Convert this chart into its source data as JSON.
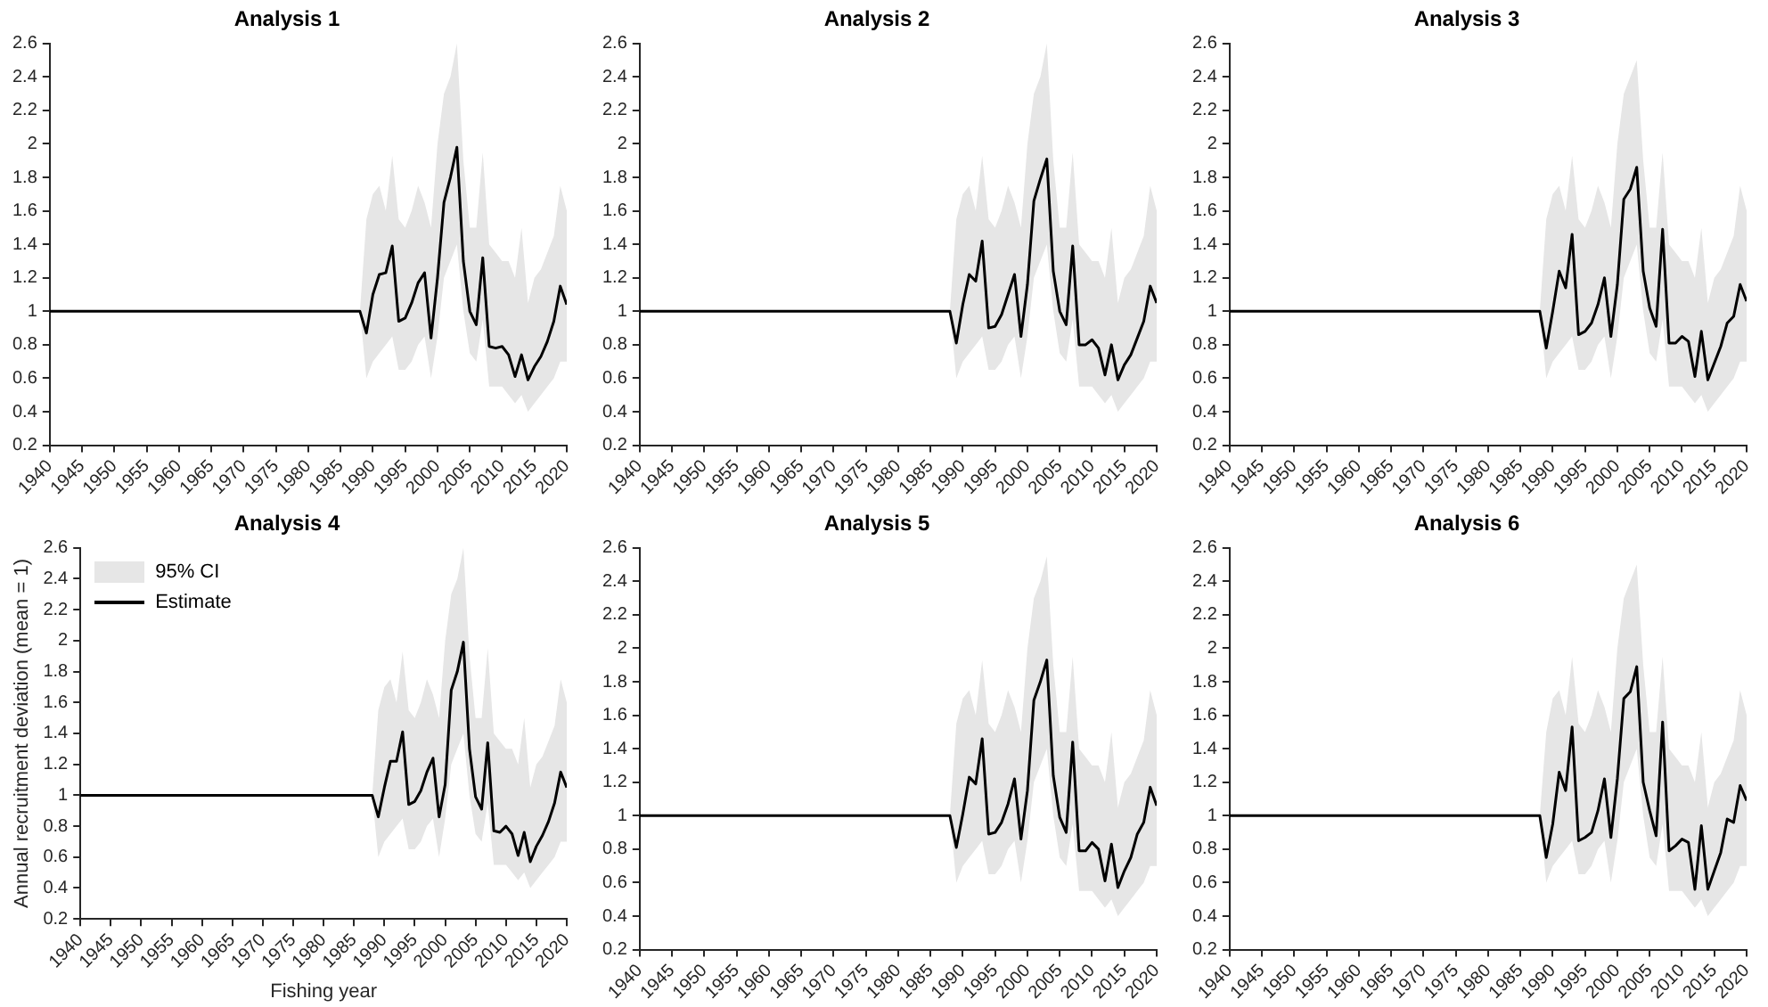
{
  "chart_data": [
    {
      "type": "line",
      "title": "Analysis 1",
      "x": [
        1940,
        1988,
        1989,
        1990,
        1991,
        1992,
        1993,
        1994,
        1995,
        1996,
        1997,
        1998,
        1999,
        2000,
        2001,
        2002,
        2003,
        2004,
        2005,
        2006,
        2007,
        2008,
        2009,
        2010,
        2011,
        2012,
        2013,
        2014,
        2015,
        2016,
        2017,
        2018,
        2019,
        2020
      ],
      "xlim": [
        1940,
        2020
      ],
      "xticks": [
        1940,
        1945,
        1950,
        1955,
        1960,
        1965,
        1970,
        1975,
        1980,
        1985,
        1990,
        1995,
        2000,
        2005,
        2010,
        2015,
        2020
      ],
      "ylim": [
        0.2,
        2.6
      ],
      "yticks": [
        0.2,
        0.4,
        0.6,
        0.8,
        1,
        1.2,
        1.4,
        1.6,
        1.8,
        2,
        2.2,
        2.4,
        2.6
      ],
      "grid": false,
      "legend": false,
      "series": [
        {
          "color": "#000000",
          "values": [
            1,
            1,
            0.87,
            1.1,
            1.22,
            1.23,
            1.39,
            0.94,
            0.96,
            1.05,
            1.17,
            1.23,
            0.84,
            1.2,
            1.65,
            1.8,
            1.98,
            1.3,
            1.0,
            0.92,
            1.32,
            0.79,
            0.78,
            0.79,
            0.74,
            0.61,
            0.74,
            0.59,
            0.67,
            0.73,
            0.82,
            0.94,
            1.15,
            1.04
          ],
          "upper": [
            1,
            1,
            1.55,
            1.7,
            1.75,
            1.6,
            1.93,
            1.55,
            1.5,
            1.6,
            1.75,
            1.65,
            1.5,
            2.0,
            2.3,
            2.4,
            2.6,
            1.9,
            1.5,
            1.5,
            1.95,
            1.4,
            1.35,
            1.3,
            1.3,
            1.2,
            1.5,
            1.05,
            1.2,
            1.25,
            1.35,
            1.45,
            1.75,
            1.6
          ],
          "lower": [
            1,
            1,
            0.6,
            0.7,
            0.75,
            0.8,
            0.85,
            0.65,
            0.65,
            0.7,
            0.8,
            0.85,
            0.6,
            0.85,
            1.2,
            1.3,
            1.4,
            1.0,
            0.75,
            0.7,
            0.95,
            0.55,
            0.55,
            0.55,
            0.5,
            0.45,
            0.5,
            0.4,
            0.45,
            0.5,
            0.55,
            0.6,
            0.7,
            0.7
          ]
        }
      ]
    },
    {
      "type": "line",
      "title": "Analysis 2",
      "x": [
        1940,
        1988,
        1989,
        1990,
        1991,
        1992,
        1993,
        1994,
        1995,
        1996,
        1997,
        1998,
        1999,
        2000,
        2001,
        2002,
        2003,
        2004,
        2005,
        2006,
        2007,
        2008,
        2009,
        2010,
        2011,
        2012,
        2013,
        2014,
        2015,
        2016,
        2017,
        2018,
        2019,
        2020
      ],
      "xlim": [
        1940,
        2020
      ],
      "xticks": [
        1940,
        1945,
        1950,
        1955,
        1960,
        1965,
        1970,
        1975,
        1980,
        1985,
        1990,
        1995,
        2000,
        2005,
        2010,
        2015,
        2020
      ],
      "ylim": [
        0.2,
        2.6
      ],
      "yticks": [
        0.2,
        0.4,
        0.6,
        0.8,
        1,
        1.2,
        1.4,
        1.6,
        1.8,
        2,
        2.2,
        2.4,
        2.6
      ],
      "grid": false,
      "legend": false,
      "series": [
        {
          "color": "#000000",
          "values": [
            1,
            1,
            0.81,
            1.04,
            1.22,
            1.18,
            1.42,
            0.9,
            0.91,
            0.98,
            1.1,
            1.22,
            0.85,
            1.16,
            1.66,
            1.79,
            1.91,
            1.24,
            1.0,
            0.92,
            1.39,
            0.8,
            0.8,
            0.83,
            0.78,
            0.62,
            0.8,
            0.59,
            0.68,
            0.74,
            0.84,
            0.94,
            1.15,
            1.05
          ],
          "upper": [
            1,
            1,
            1.55,
            1.7,
            1.75,
            1.6,
            1.93,
            1.55,
            1.5,
            1.6,
            1.75,
            1.65,
            1.5,
            2.0,
            2.3,
            2.4,
            2.6,
            1.9,
            1.5,
            1.5,
            1.95,
            1.4,
            1.35,
            1.3,
            1.3,
            1.2,
            1.5,
            1.05,
            1.2,
            1.25,
            1.35,
            1.45,
            1.75,
            1.6
          ],
          "lower": [
            1,
            1,
            0.6,
            0.7,
            0.75,
            0.8,
            0.85,
            0.65,
            0.65,
            0.7,
            0.8,
            0.85,
            0.6,
            0.85,
            1.2,
            1.3,
            1.4,
            1.0,
            0.75,
            0.7,
            0.95,
            0.55,
            0.55,
            0.55,
            0.5,
            0.45,
            0.5,
            0.4,
            0.45,
            0.5,
            0.55,
            0.6,
            0.7,
            0.7
          ]
        }
      ]
    },
    {
      "type": "line",
      "title": "Analysis 3",
      "x": [
        1940,
        1988,
        1989,
        1990,
        1991,
        1992,
        1993,
        1994,
        1995,
        1996,
        1997,
        1998,
        1999,
        2000,
        2001,
        2002,
        2003,
        2004,
        2005,
        2006,
        2007,
        2008,
        2009,
        2010,
        2011,
        2012,
        2013,
        2014,
        2015,
        2016,
        2017,
        2018,
        2019,
        2020
      ],
      "xlim": [
        1940,
        2020
      ],
      "xticks": [
        1940,
        1945,
        1950,
        1955,
        1960,
        1965,
        1970,
        1975,
        1980,
        1985,
        1990,
        1995,
        2000,
        2005,
        2010,
        2015,
        2020
      ],
      "ylim": [
        0.2,
        2.6
      ],
      "yticks": [
        0.2,
        0.4,
        0.6,
        0.8,
        1,
        1.2,
        1.4,
        1.6,
        1.8,
        2,
        2.2,
        2.4,
        2.6
      ],
      "grid": false,
      "legend": false,
      "series": [
        {
          "color": "#000000",
          "values": [
            1,
            1,
            0.78,
            1.0,
            1.24,
            1.14,
            1.46,
            0.86,
            0.88,
            0.93,
            1.04,
            1.2,
            0.85,
            1.16,
            1.67,
            1.73,
            1.86,
            1.24,
            1.02,
            0.91,
            1.49,
            0.81,
            0.81,
            0.85,
            0.82,
            0.61,
            0.88,
            0.59,
            0.69,
            0.79,
            0.93,
            0.97,
            1.16,
            1.06
          ],
          "upper": [
            1,
            1,
            1.55,
            1.7,
            1.75,
            1.6,
            1.93,
            1.55,
            1.5,
            1.6,
            1.75,
            1.65,
            1.5,
            2.0,
            2.3,
            2.4,
            2.5,
            1.9,
            1.5,
            1.5,
            1.95,
            1.4,
            1.35,
            1.3,
            1.3,
            1.2,
            1.5,
            1.05,
            1.2,
            1.25,
            1.35,
            1.45,
            1.75,
            1.6
          ],
          "lower": [
            1,
            1,
            0.6,
            0.7,
            0.75,
            0.8,
            0.85,
            0.65,
            0.65,
            0.7,
            0.8,
            0.85,
            0.6,
            0.85,
            1.2,
            1.3,
            1.4,
            1.0,
            0.75,
            0.7,
            0.95,
            0.55,
            0.55,
            0.55,
            0.5,
            0.45,
            0.5,
            0.4,
            0.45,
            0.5,
            0.55,
            0.6,
            0.7,
            0.7
          ]
        }
      ]
    },
    {
      "type": "line",
      "title": "Analysis 4",
      "xlabel": "Fishing year",
      "ylabel": "Annual recruitment deviation (mean = 1)",
      "annotations": [
        "95% CI"
      ],
      "x": [
        1940,
        1988,
        1989,
        1990,
        1991,
        1992,
        1993,
        1994,
        1995,
        1996,
        1997,
        1998,
        1999,
        2000,
        2001,
        2002,
        2003,
        2004,
        2005,
        2006,
        2007,
        2008,
        2009,
        2010,
        2011,
        2012,
        2013,
        2014,
        2015,
        2016,
        2017,
        2018,
        2019,
        2020
      ],
      "xlim": [
        1940,
        2020
      ],
      "xticks": [
        1940,
        1945,
        1950,
        1955,
        1960,
        1965,
        1970,
        1975,
        1980,
        1985,
        1990,
        1995,
        2000,
        2005,
        2010,
        2015,
        2020
      ],
      "ylim": [
        0.2,
        2.6
      ],
      "yticks": [
        0.2,
        0.4,
        0.6,
        0.8,
        1,
        1.2,
        1.4,
        1.6,
        1.8,
        2,
        2.2,
        2.4,
        2.6
      ],
      "grid": false,
      "legend": "top left",
      "series": [
        {
          "name": "Estimate",
          "color": "#000000",
          "values": [
            1,
            1,
            0.86,
            1.05,
            1.22,
            1.22,
            1.41,
            0.94,
            0.96,
            1.03,
            1.15,
            1.24,
            0.86,
            1.07,
            1.68,
            1.8,
            1.99,
            1.3,
            0.99,
            0.91,
            1.34,
            0.77,
            0.76,
            0.8,
            0.75,
            0.61,
            0.76,
            0.57,
            0.67,
            0.74,
            0.83,
            0.95,
            1.15,
            1.05
          ],
          "upper": [
            1,
            1,
            1.55,
            1.7,
            1.75,
            1.6,
            1.93,
            1.55,
            1.5,
            1.6,
            1.75,
            1.65,
            1.5,
            2.0,
            2.3,
            2.4,
            2.6,
            1.9,
            1.5,
            1.5,
            1.95,
            1.4,
            1.35,
            1.3,
            1.3,
            1.2,
            1.5,
            1.05,
            1.2,
            1.25,
            1.35,
            1.45,
            1.75,
            1.6
          ],
          "lower": [
            1,
            1,
            0.6,
            0.7,
            0.75,
            0.8,
            0.85,
            0.65,
            0.65,
            0.7,
            0.8,
            0.85,
            0.6,
            0.85,
            1.2,
            1.3,
            1.4,
            1.0,
            0.75,
            0.7,
            0.95,
            0.55,
            0.55,
            0.55,
            0.5,
            0.45,
            0.5,
            0.4,
            0.45,
            0.5,
            0.55,
            0.6,
            0.7,
            0.7
          ]
        }
      ]
    },
    {
      "type": "line",
      "title": "Analysis 5",
      "x": [
        1940,
        1988,
        1989,
        1990,
        1991,
        1992,
        1993,
        1994,
        1995,
        1996,
        1997,
        1998,
        1999,
        2000,
        2001,
        2002,
        2003,
        2004,
        2005,
        2006,
        2007,
        2008,
        2009,
        2010,
        2011,
        2012,
        2013,
        2014,
        2015,
        2016,
        2017,
        2018,
        2019,
        2020
      ],
      "xlim": [
        1940,
        2020
      ],
      "xticks": [
        1940,
        1945,
        1950,
        1955,
        1960,
        1965,
        1970,
        1975,
        1980,
        1985,
        1990,
        1995,
        2000,
        2005,
        2010,
        2015,
        2020
      ],
      "ylim": [
        0.2,
        2.6
      ],
      "yticks": [
        0.2,
        0.4,
        0.6,
        0.8,
        1,
        1.2,
        1.4,
        1.6,
        1.8,
        2,
        2.2,
        2.4,
        2.6
      ],
      "grid": false,
      "legend": false,
      "series": [
        {
          "color": "#000000",
          "values": [
            1,
            1,
            0.81,
            1.01,
            1.23,
            1.19,
            1.46,
            0.89,
            0.9,
            0.96,
            1.07,
            1.22,
            0.86,
            1.15,
            1.69,
            1.8,
            1.93,
            1.24,
            0.99,
            0.9,
            1.44,
            0.79,
            0.79,
            0.84,
            0.8,
            0.61,
            0.83,
            0.57,
            0.67,
            0.75,
            0.89,
            0.96,
            1.17,
            1.06
          ],
          "upper": [
            1,
            1,
            1.55,
            1.7,
            1.75,
            1.6,
            1.93,
            1.55,
            1.5,
            1.6,
            1.75,
            1.65,
            1.5,
            2.0,
            2.3,
            2.4,
            2.55,
            1.9,
            1.5,
            1.5,
            1.95,
            1.4,
            1.35,
            1.3,
            1.3,
            1.2,
            1.5,
            1.05,
            1.2,
            1.25,
            1.35,
            1.45,
            1.75,
            1.6
          ],
          "lower": [
            1,
            1,
            0.6,
            0.7,
            0.75,
            0.8,
            0.85,
            0.65,
            0.65,
            0.7,
            0.8,
            0.85,
            0.6,
            0.85,
            1.2,
            1.3,
            1.4,
            1.0,
            0.75,
            0.7,
            0.95,
            0.55,
            0.55,
            0.55,
            0.5,
            0.45,
            0.5,
            0.4,
            0.45,
            0.5,
            0.55,
            0.6,
            0.7,
            0.7
          ]
        }
      ]
    },
    {
      "type": "line",
      "title": "Analysis 6",
      "x": [
        1940,
        1988,
        1989,
        1990,
        1991,
        1992,
        1993,
        1994,
        1995,
        1996,
        1997,
        1998,
        1999,
        2000,
        2001,
        2002,
        2003,
        2004,
        2005,
        2006,
        2007,
        2008,
        2009,
        2010,
        2011,
        2012,
        2013,
        2014,
        2015,
        2016,
        2017,
        2018,
        2019,
        2020
      ],
      "xlim": [
        1940,
        2020
      ],
      "xticks": [
        1940,
        1945,
        1950,
        1955,
        1960,
        1965,
        1970,
        1975,
        1980,
        1985,
        1990,
        1995,
        2000,
        2005,
        2010,
        2015,
        2020
      ],
      "ylim": [
        0.2,
        2.6
      ],
      "yticks": [
        0.2,
        0.4,
        0.6,
        0.8,
        1,
        1.2,
        1.4,
        1.6,
        1.8,
        2,
        2.2,
        2.4,
        2.6
      ],
      "grid": false,
      "legend": false,
      "series": [
        {
          "color": "#000000",
          "values": [
            1,
            1,
            0.75,
            0.95,
            1.26,
            1.15,
            1.53,
            0.85,
            0.87,
            0.9,
            1.03,
            1.22,
            0.87,
            1.22,
            1.7,
            1.74,
            1.89,
            1.2,
            1.03,
            0.88,
            1.56,
            0.79,
            0.82,
            0.86,
            0.84,
            0.56,
            0.94,
            0.56,
            0.67,
            0.78,
            0.98,
            0.96,
            1.18,
            1.09
          ],
          "upper": [
            1,
            1,
            1.5,
            1.7,
            1.75,
            1.6,
            1.95,
            1.55,
            1.5,
            1.6,
            1.75,
            1.65,
            1.5,
            2.0,
            2.3,
            2.4,
            2.5,
            1.9,
            1.5,
            1.5,
            1.95,
            1.4,
            1.35,
            1.3,
            1.3,
            1.2,
            1.5,
            1.05,
            1.2,
            1.25,
            1.35,
            1.45,
            1.75,
            1.6
          ],
          "lower": [
            1,
            1,
            0.6,
            0.7,
            0.75,
            0.8,
            0.85,
            0.65,
            0.65,
            0.7,
            0.8,
            0.85,
            0.6,
            0.85,
            1.2,
            1.3,
            1.4,
            1.0,
            0.75,
            0.7,
            0.95,
            0.55,
            0.55,
            0.55,
            0.5,
            0.45,
            0.5,
            0.4,
            0.45,
            0.5,
            0.55,
            0.6,
            0.7,
            0.7
          ]
        }
      ]
    }
  ]
}
